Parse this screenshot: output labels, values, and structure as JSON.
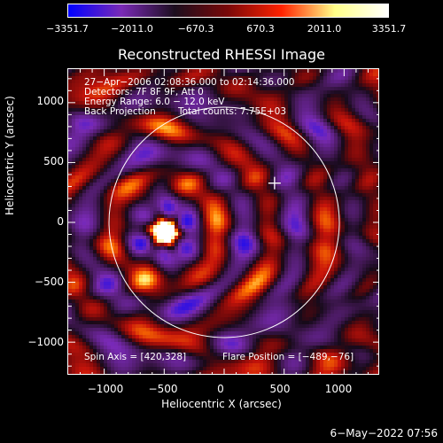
{
  "colorbar": {
    "ticks": [
      "−3351.7",
      "−2011.0",
      "−670.3",
      "670.3",
      "2011.0",
      "3351.7"
    ],
    "colors": [
      "#0000ff",
      "#7a2ab6",
      "#1c0e1e",
      "#7a0808",
      "#ff2200",
      "#ffff88",
      "#ffffff"
    ]
  },
  "title": "Reconstructed RHESSI Image",
  "annotations": {
    "line1": "27−Apr−2006 02:08:36.000 to 02:14:36.000",
    "line2": "Detectors: 7F 8F 9F, Att 0",
    "line3": "Energy Range: 6.0 − 12.0 keV",
    "line4a": "Back Projection",
    "line4b": "Total counts: 7.75E+03",
    "spin_axis": "Spin Axis = [420,328]",
    "flare_position": "Flare Position = [−489,−76]"
  },
  "axes": {
    "ylabel": "Heliocentric Y (arcsec)",
    "xlabel": "Heliocentric X (arcsec)",
    "yticks": [
      "1000",
      "500",
      "0",
      "−500",
      "−1000"
    ],
    "xticks": [
      "−1000",
      "−500",
      "0",
      "500",
      "1000"
    ]
  },
  "datestamp": "6−May−2022 07:56",
  "chart_data": {
    "type": "heatmap",
    "title": "Reconstructed RHESSI Image",
    "xlabel": "Heliocentric X (arcsec)",
    "ylabel": "Heliocentric Y (arcsec)",
    "xlim": [
      -1300,
      1300
    ],
    "ylim": [
      -1280,
      1280
    ],
    "x_ticks": [
      -1000,
      -500,
      0,
      500,
      1000
    ],
    "y_ticks": [
      -1000,
      -500,
      0,
      500,
      1000
    ],
    "colorbar_range": [
      -3351.7,
      3351.7
    ],
    "colorbar_ticks": [
      -3351.7,
      -2011.0,
      -670.3,
      670.3,
      2011.0,
      3351.7
    ],
    "solar_limb_radius_arcsec": 960,
    "flare_position": [
      -489,
      -76
    ],
    "spin_axis": [
      420,
      328
    ]
  }
}
